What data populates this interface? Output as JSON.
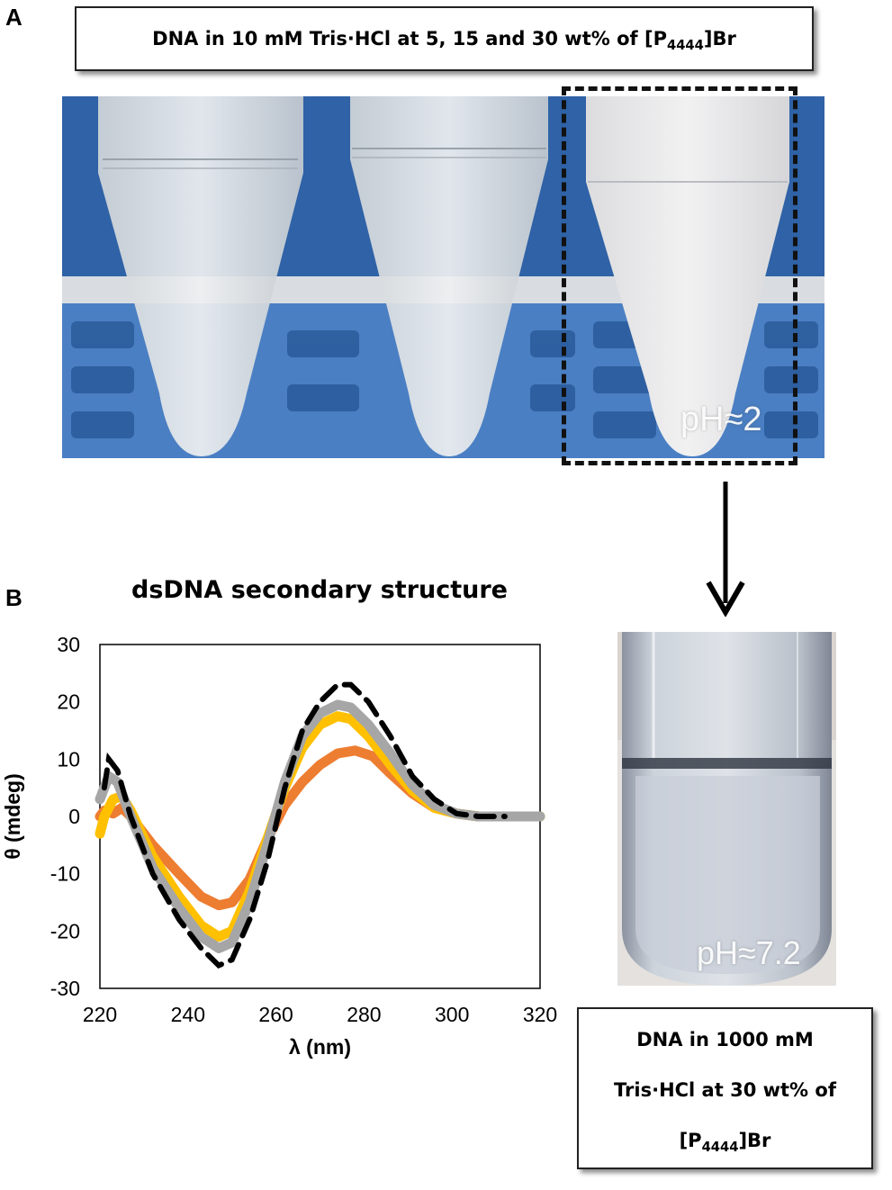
{
  "panel_a": {
    "letter": "A",
    "caption": "DNA in 10 mM Tris·HCl at 5, 15 and 30 wt% of [P4444]Br",
    "caption_parts": {
      "before": "DNA in 10 mM Tris·HCl at 5, 15 and 30 wt% of [P",
      "sub": "4444",
      "after": "]Br"
    },
    "tube_label": "pH≈2"
  },
  "panel_b": {
    "letter": "B",
    "tube_label": "pH≈7.2",
    "caption_lines": [
      "DNA in 1000 mM",
      "Tris·HCl at 30 wt% of"
    ],
    "caption_last": {
      "before": "[P",
      "sub": "4444",
      "after": "]Br"
    }
  },
  "colors": {
    "dashed": "#000000",
    "gray": "#a6a6a6",
    "yellow": "#ffc000",
    "orange": "#ed7d31",
    "rack_blue": "#3f73b0"
  },
  "chart_data": {
    "type": "line",
    "title": "dsDNA secondary structure",
    "xlabel": "λ (nm)",
    "ylabel": "θ (mdeg)",
    "xlim": [
      220,
      320
    ],
    "ylim": [
      -30,
      30
    ],
    "xticks": [
      220,
      240,
      260,
      280,
      300,
      320
    ],
    "yticks": [
      -30,
      -20,
      -10,
      0,
      10,
      20,
      30
    ],
    "x_tick_labels": [
      "220",
      "240",
      "260",
      "280",
      "300",
      "320"
    ],
    "y_tick_labels": [
      "-30",
      "-20",
      "-10",
      "0",
      "10",
      "20",
      "30"
    ],
    "grid": false,
    "series": [
      {
        "style": "dashed",
        "color": "#000000",
        "points": [
          [
            221,
            5
          ],
          [
            222,
            10
          ],
          [
            224,
            8
          ],
          [
            227,
            0
          ],
          [
            232,
            -10
          ],
          [
            238,
            -18
          ],
          [
            243,
            -23
          ],
          [
            247,
            -26
          ],
          [
            250,
            -25
          ],
          [
            254,
            -18
          ],
          [
            258,
            -8
          ],
          [
            262,
            5
          ],
          [
            266,
            15
          ],
          [
            270,
            20
          ],
          [
            274,
            23
          ],
          [
            277,
            23
          ],
          [
            281,
            20
          ],
          [
            286,
            14
          ],
          [
            291,
            7
          ],
          [
            296,
            3
          ],
          [
            301,
            0.5
          ],
          [
            306,
            0
          ],
          [
            312,
            0
          ]
        ]
      },
      {
        "style": "solid",
        "color": "#a6a6a6",
        "points": [
          [
            220,
            3
          ],
          [
            222,
            7
          ],
          [
            224,
            6
          ],
          [
            227,
            0
          ],
          [
            232,
            -9
          ],
          [
            238,
            -16
          ],
          [
            243,
            -21
          ],
          [
            247,
            -23
          ],
          [
            250,
            -22
          ],
          [
            254,
            -15
          ],
          [
            258,
            -5
          ],
          [
            262,
            6
          ],
          [
            266,
            14
          ],
          [
            270,
            18
          ],
          [
            274,
            19.5
          ],
          [
            277,
            19
          ],
          [
            281,
            16
          ],
          [
            286,
            11
          ],
          [
            291,
            5.5
          ],
          [
            296,
            2
          ],
          [
            301,
            0.5
          ],
          [
            306,
            0
          ],
          [
            320,
            0
          ]
        ]
      },
      {
        "style": "solid",
        "color": "#ffc000",
        "points": [
          [
            220,
            -3
          ],
          [
            221,
            0
          ],
          [
            223,
            3
          ],
          [
            225,
            3.5
          ],
          [
            227,
            1
          ],
          [
            232,
            -7
          ],
          [
            238,
            -14
          ],
          [
            243,
            -19
          ],
          [
            247,
            -21
          ],
          [
            250,
            -20
          ],
          [
            254,
            -13
          ],
          [
            258,
            -4
          ],
          [
            262,
            5
          ],
          [
            266,
            12
          ],
          [
            270,
            16
          ],
          [
            274,
            17.5
          ],
          [
            277,
            17
          ],
          [
            281,
            14
          ],
          [
            286,
            9
          ],
          [
            291,
            4.5
          ],
          [
            296,
            1.5
          ],
          [
            301,
            0.5
          ],
          [
            306,
            0
          ],
          [
            320,
            0
          ]
        ]
      },
      {
        "style": "solid",
        "color": "#ed7d31",
        "points": [
          [
            220,
            0
          ],
          [
            221,
            1
          ],
          [
            223,
            0.5
          ],
          [
            225,
            1.5
          ],
          [
            227,
            0
          ],
          [
            232,
            -5
          ],
          [
            238,
            -10
          ],
          [
            243,
            -14
          ],
          [
            247,
            -15.5
          ],
          [
            250,
            -15
          ],
          [
            254,
            -11
          ],
          [
            258,
            -4
          ],
          [
            262,
            2
          ],
          [
            266,
            6
          ],
          [
            270,
            9
          ],
          [
            274,
            11
          ],
          [
            278,
            11.5
          ],
          [
            282,
            10.5
          ],
          [
            286,
            7.5
          ],
          [
            291,
            4
          ],
          [
            296,
            1.5
          ],
          [
            301,
            0.5
          ],
          [
            306,
            0
          ],
          [
            320,
            0
          ]
        ]
      }
    ]
  }
}
